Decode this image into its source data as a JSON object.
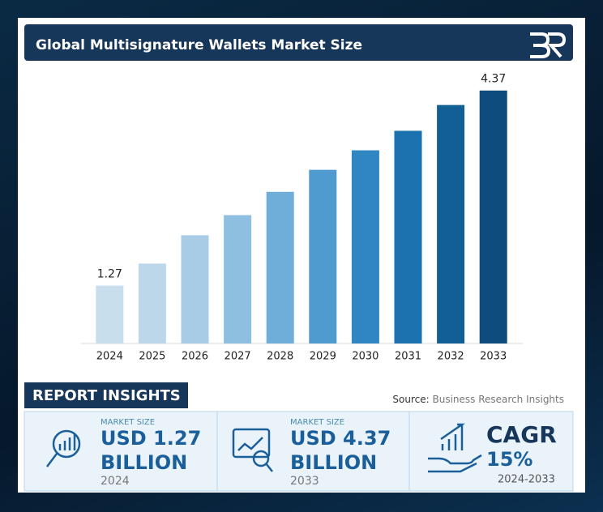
{
  "chart_data": {
    "type": "bar",
    "title": "Global Multisignature Wallets Market Size",
    "categories": [
      "2024",
      "2025",
      "2026",
      "2027",
      "2028",
      "2029",
      "2030",
      "2031",
      "2032",
      "2033"
    ],
    "values": [
      1.27,
      1.62,
      2.07,
      2.39,
      2.76,
      3.11,
      3.42,
      3.73,
      4.14,
      4.37
    ],
    "value_labels": [
      "1.27",
      null,
      null,
      null,
      null,
      null,
      null,
      null,
      null,
      "4.37"
    ],
    "colors": [
      "#c9deec",
      "#bcd7ea",
      "#a9cce6",
      "#8fbfe0",
      "#6eaed8",
      "#4f9bcf",
      "#2f86c2",
      "#1b72ae",
      "#125f96",
      "#0d4c7c"
    ],
    "ylim": [
      0.35,
      4.65
    ]
  },
  "section_label": "REPORT INSIGHTS",
  "source": {
    "prefix": "Source:",
    "text": "Business Research Insights"
  },
  "insights": [
    {
      "caption": "MARKET SIZE",
      "value_lines": [
        "USD 1.27",
        "BILLION"
      ],
      "year": "2024"
    },
    {
      "caption": "MARKET SIZE",
      "value_lines": [
        "USD 4.37",
        "BILLION"
      ],
      "year": "2033"
    },
    {
      "value_lines": [
        "CAGR",
        "15%"
      ],
      "year": "2024-2033"
    }
  ]
}
